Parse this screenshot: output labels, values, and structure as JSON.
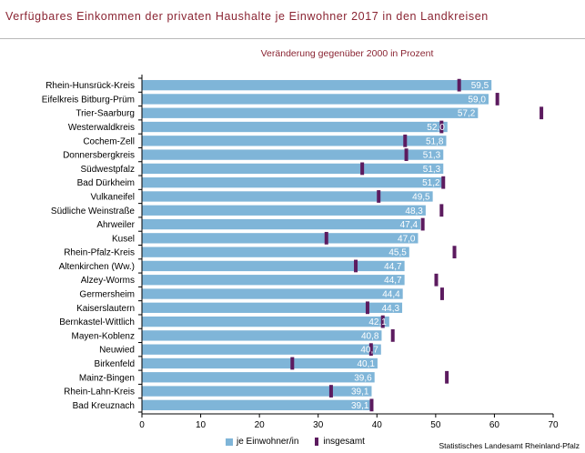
{
  "header": {
    "title": "Verfügbares Einkommen der privaten Haushalte je Einwohner 2017 in den Landkreisen"
  },
  "legend": {
    "bar_label": "je Einwohner/in",
    "marker_label": "insgesamt"
  },
  "source": "Statistisches Landesamt Rheinland-Pfalz",
  "colors": {
    "bar": "#7fb5d8",
    "marker": "#5c1b5f",
    "title": "#8a2432"
  },
  "chart_data": {
    "type": "bar",
    "orientation": "horizontal",
    "subtitle": "Veränderung gegenüber 2000 in Prozent",
    "xlim": [
      0,
      70
    ],
    "xticks": [
      0,
      10,
      20,
      30,
      40,
      50,
      60,
      70
    ],
    "grid": false,
    "legend_position": "bottom",
    "categories": [
      "Rhein-Hunsrück-Kreis",
      "Eifelkreis Bitburg-Prüm",
      "Trier-Saarburg",
      "Westerwaldkreis",
      "Cochem-Zell",
      "Donnersbergkreis",
      "Südwestpfalz",
      "Bad Dürkheim",
      "Vulkaneifel",
      "Südliche Weinstraße",
      "Ahrweiler",
      "Kusel",
      "Rhein-Pfalz-Kreis",
      "Altenkirchen (Ww.)",
      "Alzey-Worms",
      "Germersheim",
      "Kaiserslautern",
      "Bernkastel-Wittlich",
      "Mayen-Koblenz",
      "Neuwied",
      "Birkenfeld",
      "Mainz-Bingen",
      "Rhein-Lahn-Kreis",
      "Bad Kreuznach"
    ],
    "series": [
      {
        "name": "je Einwohner/in",
        "values": [
          59.5,
          59.0,
          57.2,
          52.0,
          51.8,
          51.3,
          51.3,
          51.2,
          49.5,
          48.3,
          47.4,
          47.0,
          45.5,
          44.7,
          44.7,
          44.4,
          44.3,
          42.1,
          40.8,
          40.7,
          40.1,
          39.6,
          39.1,
          39.1
        ],
        "labels": [
          "59,5",
          "59,0",
          "57,2",
          "52,0",
          "51,8",
          "51,3",
          "51,3",
          "51,2",
          "49,5",
          "48,3",
          "47,4",
          "47,0",
          "45,5",
          "44,7",
          "44,7",
          "44,4",
          "44,3",
          "42,1",
          "40,8",
          "40,7",
          "40,1",
          "39,6",
          "39,1",
          "39,1"
        ]
      },
      {
        "name": "insgesamt",
        "values": [
          54.0,
          60.5,
          68.0,
          51.0,
          44.8,
          45.0,
          37.5,
          51.3,
          40.3,
          51.0,
          47.8,
          31.4,
          53.2,
          36.4,
          50.1,
          51.1,
          38.4,
          41.0,
          42.7,
          39.0,
          25.6,
          51.9,
          32.2,
          39.1
        ]
      }
    ]
  }
}
